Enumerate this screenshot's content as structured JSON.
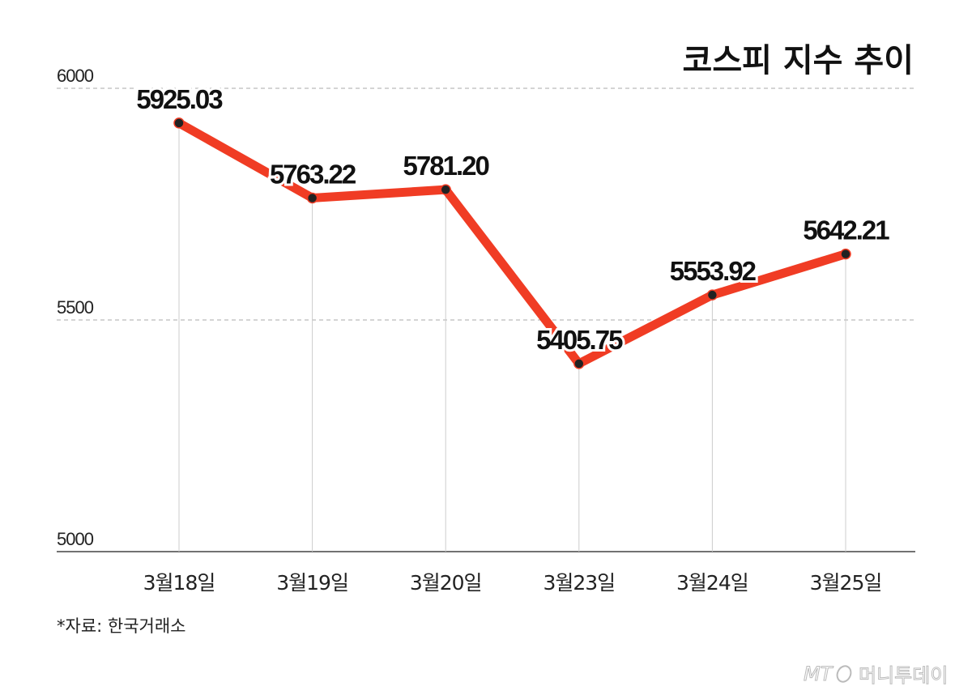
{
  "chart_data": {
    "type": "line",
    "title": "코스피 지수 추이",
    "categories": [
      "3월18일",
      "3월19일",
      "3월20일",
      "3월23일",
      "3월24일",
      "3월25일"
    ],
    "series": [
      {
        "name": "코스피",
        "values": [
          5925.03,
          5763.22,
          5781.2,
          5405.75,
          5553.92,
          5642.21
        ]
      }
    ],
    "data_labels": [
      "5925.03",
      "5763.22",
      "5781.20",
      "5405.75",
      "5553.92",
      "5642.21"
    ],
    "yticks": [
      "5000",
      "5500",
      "6000"
    ],
    "ylim": [
      5000,
      6000
    ],
    "xlabel": "",
    "ylabel": "",
    "grid": "horizontal dashed",
    "line_color": "#f03c24",
    "marker_color": "#222222"
  },
  "source": "*자료: 한국거래소",
  "logo": {
    "mark": "MT",
    "name": "머니투데이"
  }
}
